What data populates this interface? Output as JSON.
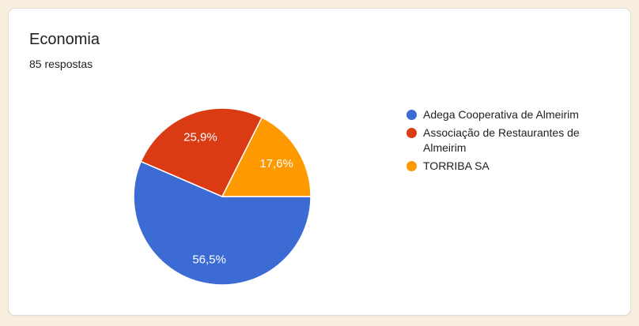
{
  "page": {
    "background_color": "#f7eedd"
  },
  "card": {
    "background_color": "#ffffff",
    "border_color": "#dcdcd4"
  },
  "chart_data": {
    "type": "pie",
    "title": "Economia",
    "subtitle": "85 respostas",
    "legend_position": "right",
    "start_angle_deg": 0,
    "direction": "clockwise",
    "label_format": "percent_comma_decimal",
    "slice_label_color": "#ffffff",
    "text_color": "#212121",
    "slices": [
      {
        "label": "Adega Cooperativa de Almeirim",
        "value": 56.5,
        "display": "56,5%",
        "color": "#3b6bd3"
      },
      {
        "label": "Associação de Restaurantes de Almeirim",
        "value": 25.9,
        "display": "25,9%",
        "color": "#da3b13"
      },
      {
        "label": "TORRIBA SA",
        "value": 17.6,
        "display": "17,6%",
        "color": "#ff9900"
      }
    ]
  }
}
